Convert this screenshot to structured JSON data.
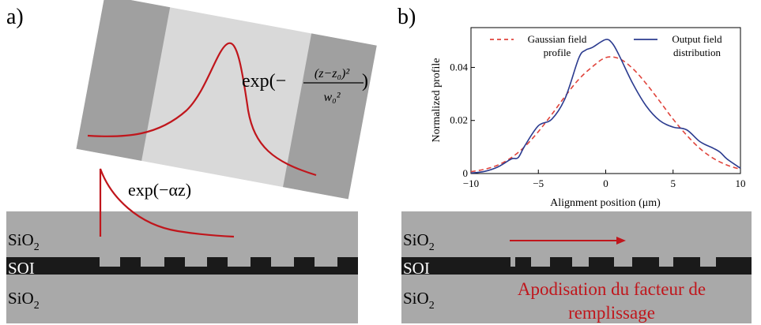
{
  "panel_a": {
    "label": "a)",
    "layers": {
      "top": "SiO",
      "top_sub": "2",
      "core": "SOI",
      "bottom": "SiO",
      "bottom_sub": "2"
    },
    "gaussian_formula": {
      "prefix": "exp(−",
      "numerator": "(z−z₀)²",
      "denominator": "w₀²",
      "suffix": ")"
    },
    "decay_formula": "exp(−αz)"
  },
  "panel_b": {
    "label": "b)",
    "layers": {
      "top": "SiO",
      "top_sub": "2",
      "core": "SOI",
      "bottom": "SiO",
      "bottom_sub": "2"
    },
    "caption_line1": "Apodisation du facteur de",
    "caption_line2": "remplissage"
  },
  "colors": {
    "curve_red": "#c0161c",
    "gaussian_dash": "#e0443c",
    "output_blue": "#2b3b8f",
    "cladding": "#a9a9a9",
    "core": "#1a1a1a",
    "rect_dark": "#a0a0a0",
    "rect_light": "#d9d9d9"
  },
  "chart_data": {
    "type": "line",
    "xlabel": "Alignment position (μm)",
    "ylabel": "Normalized profile",
    "xlim": [
      -10,
      10
    ],
    "ylim": [
      0,
      0.055
    ],
    "xticks": [
      "−10",
      "−5",
      "0",
      "5",
      "10"
    ],
    "yticks": [
      "0",
      "0.02",
      "0.04"
    ],
    "xtick_values": [
      -10,
      -5,
      0,
      5,
      10
    ],
    "ytick_values": [
      0,
      0.02,
      0.04
    ],
    "legend": [
      {
        "name": "Gaussian field profile",
        "line1": "Gaussian field",
        "line2": "profile",
        "style": "dashed"
      },
      {
        "name": "Output field distribution",
        "line1": "Output field",
        "line2": "distribution",
        "style": "solid"
      }
    ],
    "series": [
      {
        "name": "Gaussian field profile",
        "x": [
          -10,
          -9,
          -8,
          -7,
          -6,
          -5,
          -4,
          -3,
          -2,
          -1,
          0,
          1,
          2,
          3,
          4,
          5,
          6,
          7,
          8,
          9,
          10
        ],
        "values": [
          0.0007,
          0.0016,
          0.0032,
          0.006,
          0.0102,
          0.0158,
          0.0223,
          0.0292,
          0.0355,
          0.0402,
          0.0437,
          0.0433,
          0.0396,
          0.0339,
          0.0273,
          0.0205,
          0.0145,
          0.0094,
          0.0057,
          0.0032,
          0.0016
        ]
      },
      {
        "name": "Output field distribution",
        "x": [
          -10,
          -9,
          -8,
          -7,
          -6.5,
          -6,
          -5,
          -4,
          -3,
          -2,
          -1.5,
          -1,
          0,
          0.5,
          1,
          2,
          3,
          4,
          5,
          6,
          7,
          8,
          8.5,
          9,
          10
        ],
        "values": [
          0.0002,
          0.0008,
          0.0025,
          0.0055,
          0.006,
          0.0105,
          0.018,
          0.0205,
          0.0285,
          0.0435,
          0.0465,
          0.0475,
          0.0505,
          0.049,
          0.0445,
          0.034,
          0.0255,
          0.02,
          0.0175,
          0.0165,
          0.012,
          0.0095,
          0.008,
          0.0055,
          0.002
        ]
      }
    ]
  }
}
